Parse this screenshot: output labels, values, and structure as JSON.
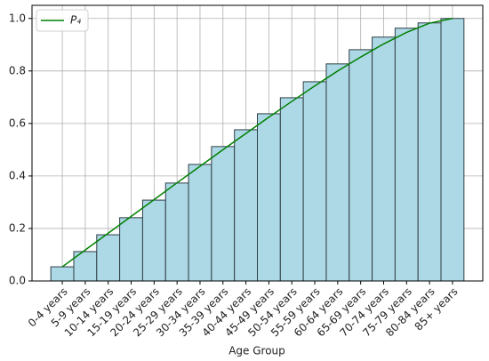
{
  "chart_data": {
    "type": "bar",
    "x_label": "Age Group",
    "categories": [
      "0-4 years",
      "5-9 years",
      "10-14 years",
      "15-19 years",
      "20-24 years",
      "25-29 years",
      "30-34 years",
      "35-39 years",
      "40-44 years",
      "45-49 years",
      "50-54 years",
      "55-59 years",
      "60-64 years",
      "65-69 years",
      "70-74 years",
      "75-79 years",
      "80-84 years",
      "85+ years"
    ],
    "series": [
      {
        "type": "bar",
        "color": "#add8e6",
        "edgecolor": "#2f3f46",
        "values": [
          0.054,
          0.112,
          0.176,
          0.241,
          0.308,
          0.373,
          0.444,
          0.512,
          0.576,
          0.637,
          0.698,
          0.759,
          0.827,
          0.881,
          0.929,
          0.963,
          0.983,
          1.0
        ]
      },
      {
        "type": "line",
        "name": "P₄",
        "color": "#008000",
        "values": [
          0.054,
          0.118,
          0.182,
          0.246,
          0.31,
          0.374,
          0.437,
          0.5,
          0.562,
          0.624,
          0.684,
          0.743,
          0.8,
          0.853,
          0.903,
          0.947,
          0.982,
          1.0
        ]
      }
    ],
    "ylim": [
      0,
      1.05
    ],
    "yticks": [
      {
        "value": 0,
        "label": "0.0"
      },
      {
        "value": 0.2,
        "label": "0.2"
      },
      {
        "value": 0.4,
        "label": "0.4"
      },
      {
        "value": 0.6,
        "label": "0.6"
      },
      {
        "value": 0.8,
        "label": "0.8"
      },
      {
        "value": 1.0,
        "label": "1.0"
      }
    ],
    "grid": true,
    "legend": "upper left"
  }
}
